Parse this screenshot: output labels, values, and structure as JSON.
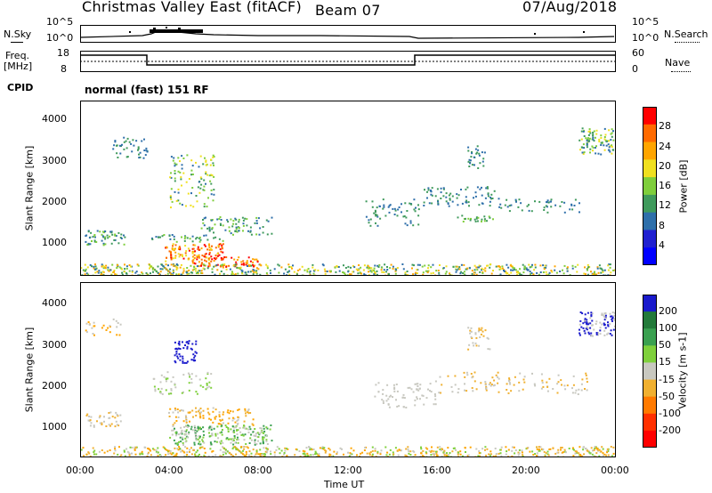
{
  "header": {
    "title": "Christmas Valley East (fitACF)",
    "beam": "Beam 07",
    "date": "07/Aug/2018"
  },
  "strips": {
    "nsky_label": "N.Sky",
    "nsearch_label": "N.Search",
    "noise_ticks": [
      "10^5",
      "10^0"
    ],
    "freq_label": "Freq.",
    "freq_unit": "[MHz]",
    "freq_ticks": [
      "18",
      "8"
    ],
    "nave_label": "Nave",
    "nave_ticks": [
      "60",
      "0"
    ],
    "cpid_label": "CPID",
    "cpid_value": "normal (fast) 151 RF"
  },
  "chart_data": [
    {
      "type": "heatmap",
      "panel": "power",
      "ylabel": "Slant Range [km]",
      "yticks": [
        "4000",
        "3000",
        "2000",
        "1000"
      ],
      "colorbar_label": "Power [dB]",
      "colorbar_ticks": [
        "28",
        "24",
        "20",
        "16",
        "12",
        "8",
        "4"
      ],
      "colorbar_colors": [
        "#ff0000",
        "#ff6a00",
        "#ffa500",
        "#f0e020",
        "#7fce3c",
        "#3f9a5c",
        "#2e6faa",
        "#2020d0",
        "#0000ff"
      ]
    },
    {
      "type": "heatmap",
      "panel": "velocity",
      "ylabel": "Slant Range [km]",
      "yticks": [
        "4000",
        "3000",
        "2000",
        "1000"
      ],
      "colorbar_label": "Velocity [m s-1]",
      "colorbar_ticks": [
        "200",
        "100",
        "50",
        "15",
        "-15",
        "-50",
        "-100",
        "-200"
      ],
      "colorbar_colors": [
        "#1a1acc",
        "#237a3a",
        "#3aa050",
        "#7fd03c",
        "#c8c8c0",
        "#f0b030",
        "#ff7a00",
        "#ff3000",
        "#ff0000"
      ]
    }
  ],
  "xaxis": {
    "label": "Time UT",
    "ticks": [
      "00:00",
      "04:00",
      "08:00",
      "12:00",
      "16:00",
      "20:00",
      "00:00"
    ]
  }
}
